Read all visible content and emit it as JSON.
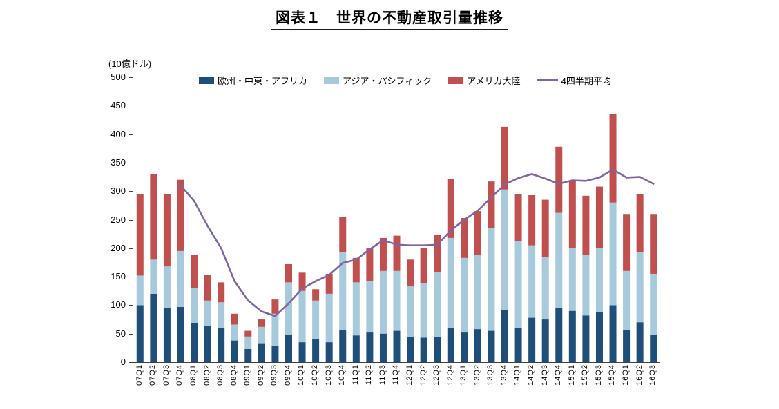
{
  "title": "図表１　世界の不動産取引量推移",
  "unit_label": "(10億ドル)",
  "legend": [
    {
      "label": "欧州・中東・アフリカ",
      "color": "#1F4E79",
      "marker": "box"
    },
    {
      "label": "アジア・パシフィック",
      "color": "#A6C9DC",
      "marker": "box"
    },
    {
      "label": "アメリカ大陸",
      "color": "#C0504D",
      "marker": "box"
    },
    {
      "label": "4四半期平均",
      "color": "#8064A2",
      "marker": "line"
    }
  ],
  "chart_data": {
    "type": "bar",
    "stacked": true,
    "line_overlay": true,
    "title": "図表１　世界の不動産取引量推移",
    "ylabel": "(10億ドル)",
    "ylim": [
      0,
      500
    ],
    "ytick_step": 50,
    "yticks": [
      0,
      50,
      100,
      150,
      200,
      250,
      300,
      350,
      400,
      450,
      500
    ],
    "grid": false,
    "legend_position": "top",
    "categories": [
      "07Q1",
      "07Q2",
      "07Q3",
      "07Q4",
      "08Q1",
      "08Q2",
      "08Q3",
      "08Q4",
      "09Q1",
      "09Q2",
      "09Q3",
      "09Q4",
      "10Q1",
      "10Q2",
      "10Q3",
      "10Q4",
      "11Q1",
      "11Q2",
      "11Q3",
      "11Q4",
      "12Q1",
      "12Q2",
      "12Q3",
      "12Q4",
      "13Q1",
      "13Q2",
      "13Q3",
      "13Q4",
      "14Q1",
      "14Q2",
      "14Q3",
      "14Q4",
      "15Q1",
      "15Q2",
      "15Q3",
      "15Q4",
      "16Q1",
      "16Q2",
      "16Q3"
    ],
    "series": [
      {
        "name": "欧州・中東・アフリカ",
        "color": "#1F4E79",
        "values": [
          100,
          120,
          95,
          97,
          68,
          63,
          60,
          38,
          23,
          32,
          28,
          48,
          35,
          40,
          35,
          57,
          47,
          52,
          50,
          55,
          45,
          43,
          44,
          60,
          52,
          58,
          55,
          92,
          60,
          78,
          75,
          95,
          90,
          82,
          88,
          100,
          57,
          70,
          48
        ]
      },
      {
        "name": "アジア・パシフィック",
        "color": "#A6C9DC",
        "values": [
          52,
          60,
          73,
          98,
          62,
          45,
          45,
          28,
          22,
          30,
          57,
          92,
          90,
          68,
          85,
          136,
          93,
          90,
          110,
          105,
          88,
          95,
          114,
          158,
          131,
          130,
          180,
          211,
          153,
          127,
          110,
          167,
          110,
          106,
          112,
          180,
          103,
          123,
          107
        ]
      },
      {
        "name": "アメリカ大陸",
        "color": "#C0504D",
        "values": [
          143,
          150,
          127,
          125,
          58,
          45,
          35,
          19,
          10,
          13,
          25,
          32,
          32,
          20,
          35,
          62,
          43,
          58,
          58,
          62,
          47,
          62,
          65,
          104,
          70,
          77,
          82,
          110,
          82,
          88,
          100,
          116,
          118,
          104,
          108,
          155,
          100,
          102,
          105
        ]
      }
    ],
    "line_series": {
      "name": "4四半期平均",
      "color": "#8064A2",
      "values": [
        null,
        null,
        null,
        310,
        283,
        239,
        200,
        142,
        108,
        89,
        81,
        103,
        129,
        142,
        153,
        174,
        180,
        198,
        214,
        206,
        205,
        205,
        206,
        231,
        250,
        266,
        289,
        312,
        323,
        330,
        322,
        313,
        319,
        318,
        324,
        338,
        324,
        325,
        313
      ]
    }
  }
}
